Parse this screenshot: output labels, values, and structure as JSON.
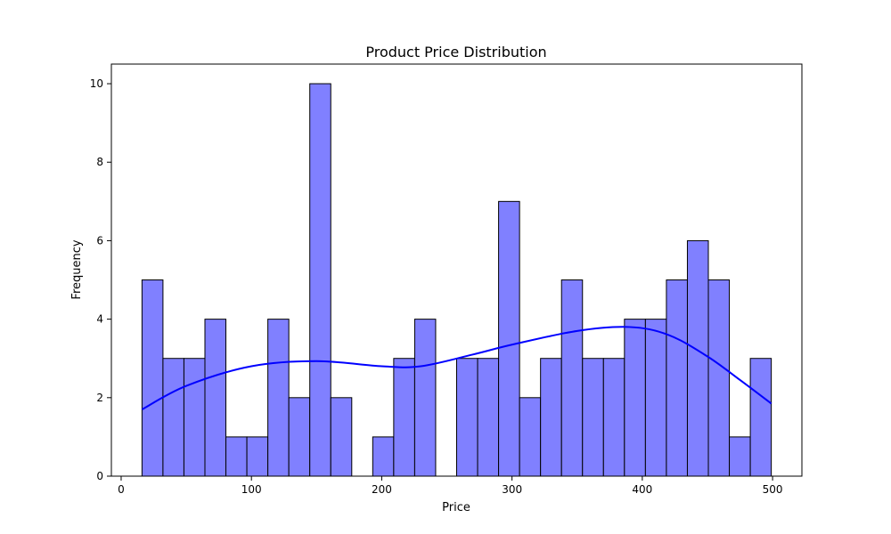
{
  "chart_data": {
    "type": "bar",
    "title": "Product Price Distribution",
    "xlabel": "Price",
    "ylabel": "Frequency",
    "xlim": [
      -7.5,
      522.5
    ],
    "ylim": [
      0,
      10.5
    ],
    "x_ticks": [
      0,
      100,
      200,
      300,
      400,
      500
    ],
    "y_ticks": [
      0,
      2,
      4,
      6,
      8,
      10
    ],
    "bin_edges": [
      16,
      32.1,
      48.2,
      64.3,
      80.4,
      96.5,
      112.6,
      128.7,
      144.8,
      160.9,
      177,
      193.1,
      209.2,
      225.3,
      241.4,
      257.5,
      273.6,
      289.7,
      305.8,
      321.9,
      338,
      354.1,
      370.2,
      386.3,
      402.4,
      418.5,
      434.6,
      450.7,
      466.8,
      482.9,
      499
    ],
    "counts": [
      5,
      3,
      3,
      4,
      1,
      1,
      4,
      2,
      10,
      2,
      0,
      1,
      3,
      4,
      0,
      3,
      3,
      7,
      2,
      3,
      5,
      3,
      3,
      4,
      4,
      5,
      6,
      5,
      1,
      3
    ],
    "kde": {
      "x": [
        16,
        50,
        100,
        150,
        200,
        230,
        270,
        300,
        350,
        390,
        420,
        450,
        475,
        499
      ],
      "y": [
        1.7,
        2.3,
        2.8,
        2.93,
        2.8,
        2.8,
        3.1,
        3.35,
        3.7,
        3.8,
        3.6,
        3.05,
        2.45,
        1.85
      ]
    },
    "colors": {
      "bar_fill": "#8080ff",
      "bar_edge": "#000000",
      "kde_line": "#0000ff",
      "axes": "#000000"
    },
    "grid": false,
    "legend": "none"
  }
}
